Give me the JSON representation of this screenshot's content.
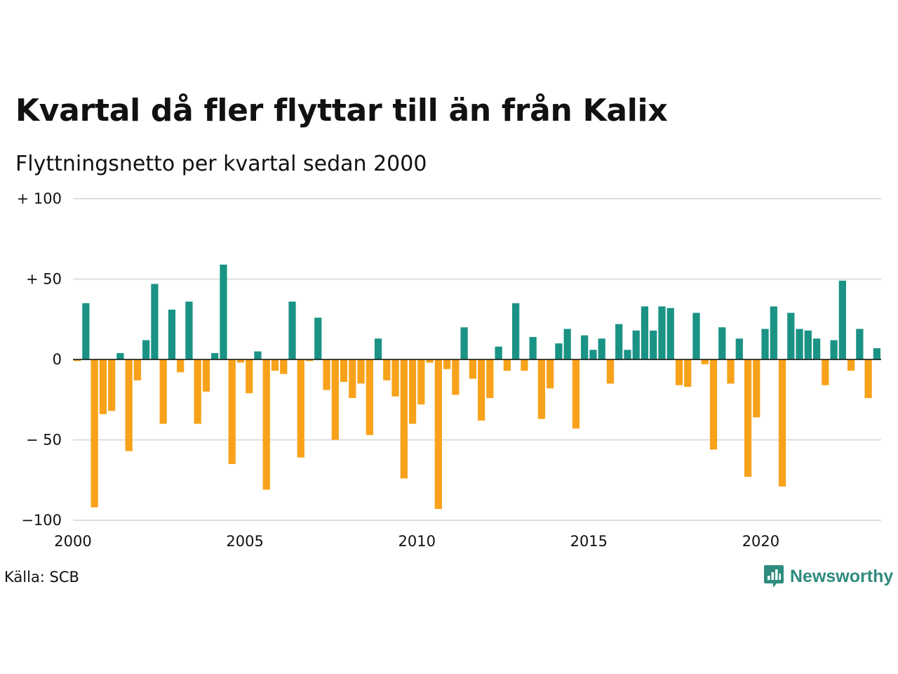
{
  "chart_data": {
    "type": "bar",
    "title": "Kvartal då fler flyttar till än från Kalix",
    "subtitle": "Flyttningsnetto per kvartal sedan 2000",
    "x_start": 2000,
    "x_step": 0.25,
    "xlim": [
      2000,
      2023.5
    ],
    "ylim": [
      -100,
      100
    ],
    "y_ticks": [
      100,
      50,
      0,
      -50,
      -100
    ],
    "y_tick_labels": [
      "+ 100",
      "+  50",
      "0",
      "− 50",
      "−100"
    ],
    "x_ticks": [
      2000,
      2005,
      2010,
      2015,
      2020
    ],
    "x_tick_labels": [
      "2000",
      "2005",
      "2010",
      "2015",
      "2020"
    ],
    "grid": true,
    "colors": {
      "positive": "#1a9385",
      "negative": "#f8a21b"
    },
    "values": [
      -1,
      35,
      -92,
      -34,
      -32,
      4,
      -57,
      -13,
      12,
      47,
      -40,
      31,
      -8,
      36,
      -40,
      -20,
      4,
      59,
      -65,
      -2,
      -21,
      5,
      -81,
      -7,
      -9,
      36,
      -61,
      -1,
      26,
      -19,
      -50,
      -14,
      -24,
      -15,
      -47,
      13,
      -13,
      -23,
      -74,
      -40,
      -28,
      -2,
      -93,
      -6,
      -22,
      20,
      -12,
      -38,
      -24,
      8,
      -7,
      35,
      -7,
      14,
      -37,
      -18,
      10,
      19,
      -43,
      15,
      6,
      13,
      -15,
      22,
      6,
      18,
      33,
      18,
      33,
      32,
      -16,
      -17,
      29,
      -3,
      -56,
      20,
      -15,
      13,
      -73,
      -36,
      19,
      33,
      -79,
      29,
      19,
      18,
      13,
      -16,
      12,
      49,
      -7,
      19,
      -24,
      7
    ]
  },
  "source": "Källa: SCB",
  "logo": {
    "text": "Newsworthy",
    "icon": "newsworthy-chart-icon",
    "color": "#2e8b7d"
  }
}
